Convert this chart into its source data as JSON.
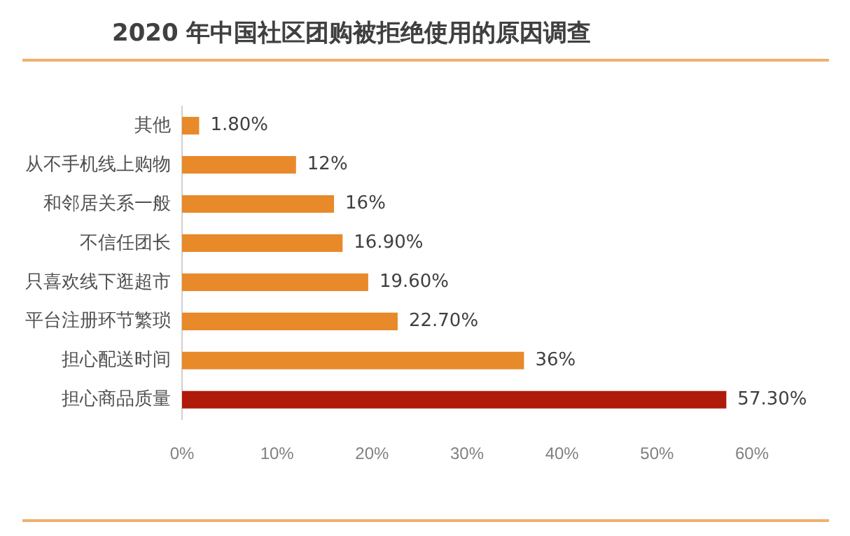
{
  "chart_data": {
    "type": "bar",
    "orientation": "horizontal",
    "title": "2020 年中国社区团购被拒绝使用的原因调查",
    "categories": [
      "其他",
      "从不手机线上购物",
      "和邻居关系一般",
      "不信任团长",
      "只喜欢线下逛超市",
      "平台注册环节繁琐",
      "担心配送时间",
      "担心商品质量"
    ],
    "values": [
      1.8,
      12,
      16,
      16.9,
      19.6,
      22.7,
      36,
      57.3
    ],
    "colors": [
      "#e8892a",
      "#e8892a",
      "#e8892a",
      "#e8892a",
      "#e8892a",
      "#e8892a",
      "#e8892a",
      "#b01a0a"
    ],
    "value_labels": [
      "1.80%",
      "12%",
      "16%",
      "16.90%",
      "19.60%",
      "22.70%",
      "36%",
      "57.30%"
    ],
    "xlim": [
      0,
      60
    ],
    "xticks": [
      {
        "value": 0,
        "label": "0%"
      },
      {
        "value": 10,
        "label": "10%"
      },
      {
        "value": 20,
        "label": "20%"
      },
      {
        "value": 30,
        "label": "30%"
      },
      {
        "value": 40,
        "label": "40%"
      },
      {
        "value": 50,
        "label": "50%"
      },
      {
        "value": 60,
        "label": "60%"
      }
    ],
    "grid": false,
    "legend": false
  }
}
